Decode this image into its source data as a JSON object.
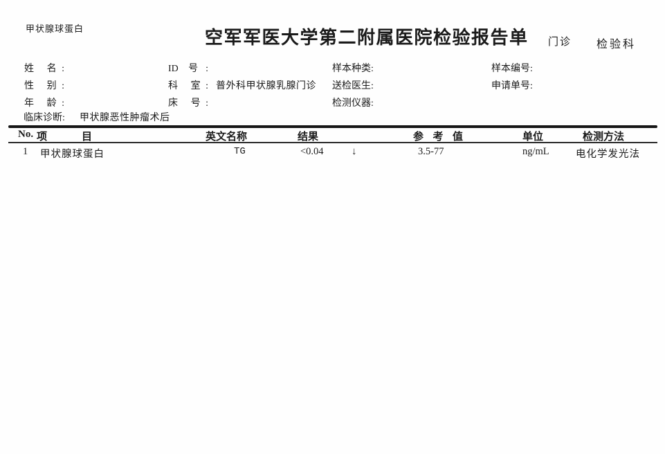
{
  "header": {
    "report_name": "甲状腺球蛋白",
    "title": "空军军医大学第二附属医院检验报告单",
    "visit_type": "门诊",
    "lab_department": "检验科"
  },
  "patient_info": {
    "name_label": "姓 名:",
    "name_value": "",
    "id_label": "ID 号:",
    "id_value": "",
    "sample_type_label": "样本种类:",
    "sample_type_value": "",
    "sample_no_label": "样本编号:",
    "sample_no_value": "",
    "gender_label": "性 别:",
    "gender_value": "",
    "department_label": "科 室:",
    "department_value": "普外科甲状腺乳腺门诊",
    "ordering_doctor_label": "送检医生:",
    "ordering_doctor_value": "",
    "request_no_label": "申请单号:",
    "request_no_value": "",
    "age_label": "年 龄:",
    "age_value": "",
    "bed_no_label": "床 号:",
    "bed_no_value": "",
    "instrument_label": "检测仪器:",
    "instrument_value": "",
    "clinical_diagnosis_label": "临床诊断:",
    "clinical_diagnosis_value": "甲状腺恶性肿瘤术后"
  },
  "results_table": {
    "columns": {
      "no": "No.",
      "item": "项 目",
      "english_name": "英文名称",
      "result": "结果",
      "reference": "参 考 值",
      "unit": "单位",
      "method": "检测方法"
    },
    "rows": [
      {
        "no": "1",
        "item": "甲状腺球蛋白",
        "english_name": "TG",
        "result": "<0.04",
        "flag": "↓",
        "reference": "3.5-77",
        "unit": "ng/mL",
        "method": "电化学发光法"
      }
    ]
  }
}
